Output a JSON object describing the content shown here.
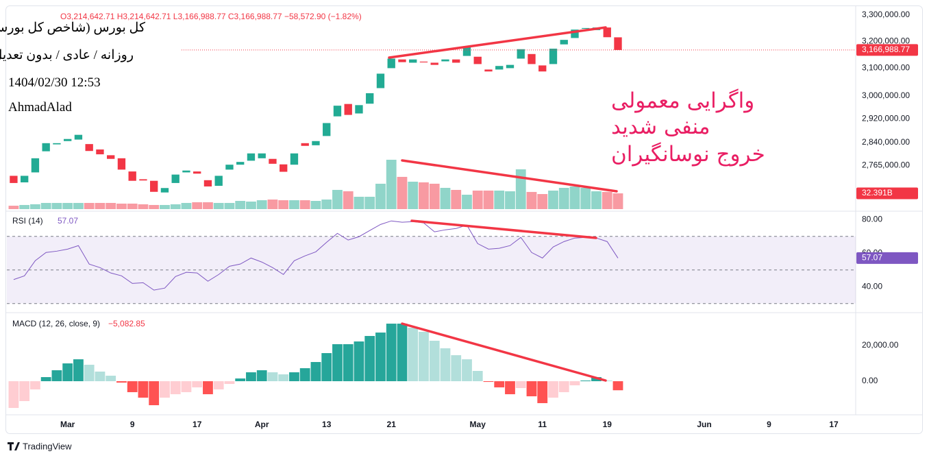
{
  "chart_data": [
    {
      "type": "candlestick",
      "title": "کل بورس (شاخص کل بورس)",
      "subtitle": "روزانه / عادی / بدون تعدیل",
      "date": "1404/02/30 12:53",
      "author": "AhmadAlad",
      "header": "O3,214,642.71 H3,214,642.71 L3,166,988.77 C3,166,988.77 −58,572.90 (−1.82%)",
      "annotations": [
        "واگرایی معمولی",
        "منفی شدید",
        "خروج نوسانگیران"
      ],
      "up_color": "#22ab94",
      "down_color": "#f23645",
      "log": true,
      "open": [
        2731000,
        2710000,
        2742000,
        2811000,
        2834000,
        2845000,
        2850000,
        2835000,
        2817000,
        2798000,
        2788000,
        2745000,
        2720000,
        2715000,
        2678000,
        2708000,
        2742000,
        2745000,
        2717000,
        2699000,
        2751000,
        2767000,
        2780000,
        2788000,
        2786000,
        2768000,
        2767000,
        2838000,
        2831000,
        2862000,
        2929000,
        2972000,
        2939000,
        2973000,
        3028000,
        3100000,
        3132000,
        3120000,
        3124000,
        3120000,
        3125000,
        3132000,
        3145000,
        3142000,
        3095000,
        3095000,
        3100000,
        3135000,
        3152000,
        3110000,
        3115000,
        3188000,
        3212000,
        3247000,
        3242000,
        3252000,
        3214642.71
      ],
      "close": [
        2708000,
        2731000,
        2788000,
        2838000,
        2838000,
        2852000,
        2866000,
        2812000,
        2801000,
        2786000,
        2751000,
        2715000,
        2716000,
        2680000,
        2692000,
        2735000,
        2748000,
        2738000,
        2697000,
        2731000,
        2767000,
        2776000,
        2804000,
        2804000,
        2770000,
        2744000,
        2804000,
        2829000,
        2845000,
        2906000,
        2966000,
        2934000,
        2968000,
        3010000,
        3080000,
        3135000,
        3122000,
        3132000,
        3121000,
        3112000,
        3132000,
        3120000,
        3180000,
        3115000,
        3088000,
        3108000,
        3112000,
        3170000,
        3115000,
        3088000,
        3172000,
        3205000,
        3244000,
        3250000,
        3252000,
        3215000,
        3166988.77
      ],
      "ylim": [
        2626000,
        3359000
      ],
      "yticks": [
        {
          "value": 3300000,
          "label": "3,300,000.00"
        },
        {
          "value": 3200000,
          "label": "3,200,000.00"
        },
        {
          "value": 3100000,
          "label": "3,100,000.00"
        },
        {
          "value": 3000000,
          "label": "3,000,000.00"
        },
        {
          "value": 2920000,
          "label": "2,920,000.00"
        },
        {
          "value": 2840000,
          "label": "2,840,000.00"
        },
        {
          "value": 2765000,
          "label": "2,765,000.00"
        }
      ],
      "last_price": {
        "value": 3166988.77,
        "label": "3,166,988.77"
      },
      "xlim": [
        -0.63,
        78.03
      ],
      "xticks": [
        {
          "value": 5,
          "label": "Mar"
        },
        {
          "value": 11,
          "label": "9"
        },
        {
          "value": 17,
          "label": "17"
        },
        {
          "value": 23,
          "label": "Apr"
        },
        {
          "value": 29,
          "label": "13"
        },
        {
          "value": 35,
          "label": "21"
        },
        {
          "value": 43,
          "label": "May"
        },
        {
          "value": 49,
          "label": "11"
        },
        {
          "value": 55,
          "label": "19"
        },
        {
          "value": 64,
          "label": "Jun"
        },
        {
          "value": 70,
          "label": "9"
        },
        {
          "value": 76,
          "label": "17"
        }
      ],
      "volume": {
        "values": [
          7,
          8.5,
          10,
          12.7,
          12.7,
          12.7,
          12.7,
          12.7,
          12.7,
          12.7,
          11.3,
          11.3,
          9.9,
          8.5,
          8.5,
          9.9,
          12.7,
          14.1,
          14.1,
          12.7,
          12.7,
          16.9,
          15.5,
          18.3,
          19.7,
          18.3,
          18.3,
          18.3,
          16.9,
          19.7,
          39.5,
          36.7,
          25.4,
          25.4,
          52.2,
          101.5,
          66.3,
          56.4,
          55,
          52.2,
          43.7,
          39.5,
          29.6,
          38.1,
          38.1,
          38.1,
          36.7,
          81.8,
          35.3,
          31,
          38.1,
          43.7,
          46.5,
          43.7,
          36.7,
          35.3,
          32.391
        ],
        "ylim": [
          0,
          430
        ],
        "last_label": "32.391B"
      }
    },
    {
      "type": "line",
      "name": "RSI (14)",
      "color": "#7e57c2",
      "values": [
        44.3,
        46.5,
        55.5,
        60.4,
        61.2,
        62.4,
        64.5,
        53.5,
        51.4,
        48.2,
        46.5,
        42,
        42.4,
        38,
        39.2,
        46.1,
        48.6,
        48.2,
        43.3,
        47.3,
        52.2,
        53.5,
        57.1,
        54.7,
        51.4,
        47.3,
        55.5,
        58.4,
        60.8,
        66.5,
        71.8,
        67.8,
        69.8,
        73.5,
        77.1,
        79.2,
        78.4,
        78.8,
        78,
        72.7,
        73.9,
        74.7,
        76.7,
        65.7,
        62.4,
        62.9,
        64.5,
        69.4,
        60.4,
        57.1,
        63.7,
        66.9,
        69,
        69.4,
        69,
        66.9,
        57.07
      ],
      "ylim": [
        25,
        85
      ],
      "yticks": [
        {
          "value": 80,
          "label": "80.00"
        },
        {
          "value": 60,
          "label": "60.00"
        },
        {
          "value": 40,
          "label": "40.00"
        }
      ],
      "bands": [
        30,
        50,
        70
      ]
    },
    {
      "type": "bar",
      "name": "MACD (12, 26, close, 9)",
      "values": [
        -15000,
        -11150,
        -4600,
        2300,
        6150,
        10000,
        12300,
        9230,
        5400,
        3100,
        -770,
        -6150,
        -9230,
        -13460,
        -9230,
        -7300,
        -6150,
        -3460,
        -7300,
        -4600,
        -1540,
        1540,
        5000,
        6150,
        5000,
        3850,
        5000,
        7300,
        10770,
        15770,
        20770,
        20770,
        22300,
        25380,
        27300,
        32300,
        32300,
        30000,
        27700,
        22700,
        18460,
        14600,
        12300,
        5770,
        -400,
        -3460,
        -7300,
        -3850,
        -8460,
        -12300,
        -9230,
        -6150,
        -2300,
        380,
        2300,
        380,
        -5082.85
      ],
      "last_label": "−5,082.85",
      "colors": [
        "#26a69a",
        "#b2dfdb",
        "#ff5252",
        "#ffcdd2"
      ],
      "ylim": [
        -18850,
        37700
      ],
      "yticks": [
        {
          "value": 20000,
          "label": "20,000.00"
        },
        {
          "value": 0,
          "label": "0.00"
        }
      ]
    }
  ],
  "footer": "TradingView"
}
